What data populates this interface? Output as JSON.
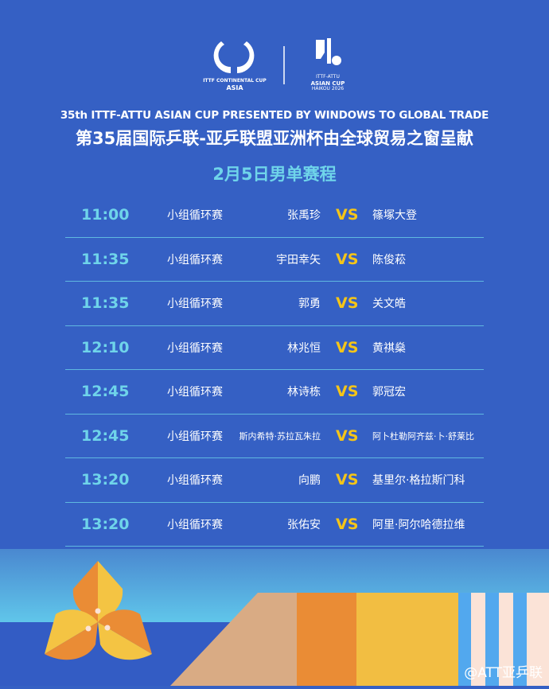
{
  "logos": {
    "left_line1": "ITTF CONTINENTAL CUP",
    "left_line2": "ASIA",
    "right_line1": "ITTF-ATTU",
    "right_line2": "ASIAN CUP",
    "right_line3": "HAIKOU 2026"
  },
  "title_en": "35th ITTF-ATTU ASIAN CUP PRESENTED BY WINDOWS TO GLOBAL TRADE",
  "title_cn": "第35届国际乒联-亚乒联盟亚洲杯由全球贸易之窗呈献",
  "subtitle": "2月5日男单赛程",
  "vs_label": "VS",
  "matches": [
    {
      "time": "11:00",
      "stage": "小组循环赛",
      "player1": "张禹珍",
      "player2": "篠塚大登"
    },
    {
      "time": "11:35",
      "stage": "小组循环赛",
      "player1": "宇田幸矢",
      "player2": "陈俊菘"
    },
    {
      "time": "11:35",
      "stage": "小组循环赛",
      "player1": "郭勇",
      "player2": "关文皓"
    },
    {
      "time": "12:10",
      "stage": "小组循环赛",
      "player1": "林兆恒",
      "player2": "黄祺燊"
    },
    {
      "time": "12:45",
      "stage": "小组循环赛",
      "player1": "林诗栋",
      "player2": "郭冠宏"
    },
    {
      "time": "12:45",
      "stage": "小组循环赛",
      "player1": "斯内希特·苏拉瓦朱拉",
      "player2": "阿卜杜勒阿齐兹·卜·舒莱比"
    },
    {
      "time": "13:20",
      "stage": "小组循环赛",
      "player1": "向鹏",
      "player2": "基里尔·格拉斯门科"
    },
    {
      "time": "13:20",
      "stage": "小组循环赛",
      "player1": "张佑安",
      "player2": "阿里·阿尔哈德拉维"
    }
  ],
  "watermark": "@ATT亚乒联",
  "colors": {
    "background": "#3560c4",
    "time": "#6fd4ea",
    "vs": "#f5c518",
    "orange": "#ea8c35",
    "yellow": "#f4c443",
    "tan": "#d9ab84"
  }
}
